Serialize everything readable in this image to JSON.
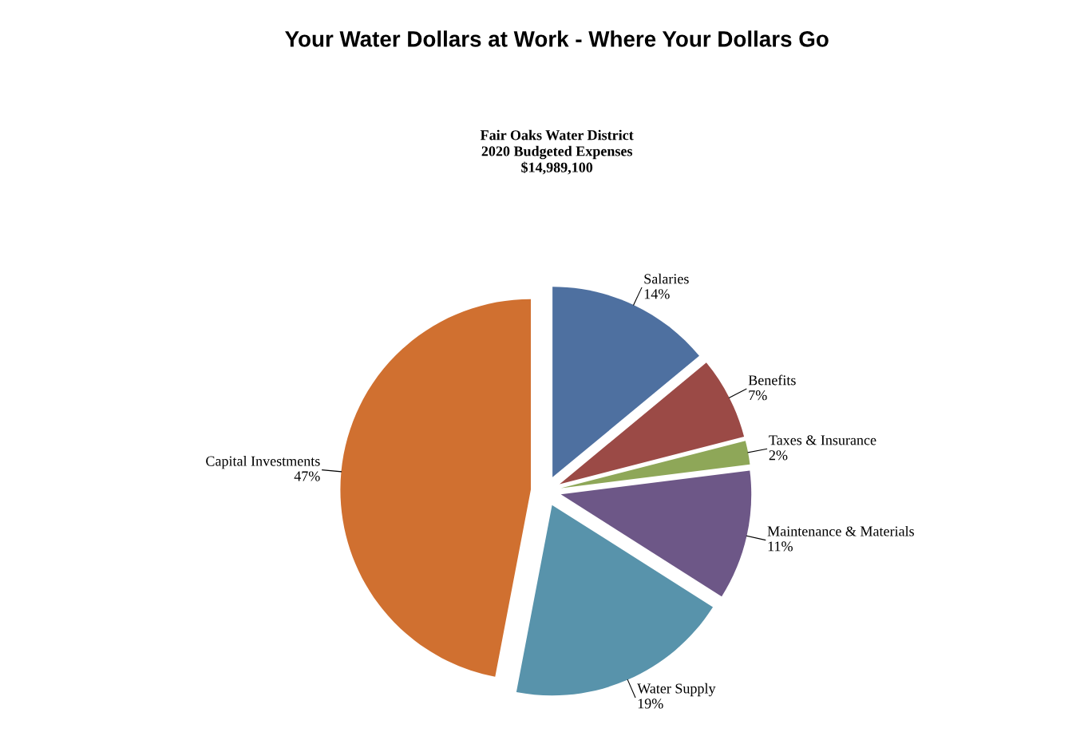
{
  "chart_data": {
    "type": "pie",
    "title": "Your Water Dollars at Work - Where Your Dollars Go",
    "subtitle": "Fair Oaks Water District\n2020 Budgeted Expenses\n$14,989,100",
    "categories": [
      "Salaries",
      "Benefits",
      "Taxes & Insurance",
      "Maintenance & Materials",
      "Water Supply",
      "Capital Investments"
    ],
    "values": [
      14,
      7,
      2,
      11,
      19,
      47
    ],
    "value_labels": [
      "14%",
      "7%",
      "2%",
      "11%",
      "19%",
      "47%"
    ],
    "colors": [
      "#4e70a0",
      "#9b4a46",
      "#8ea758",
      "#6d5787",
      "#5893ab",
      "#d07030"
    ],
    "legend": false
  }
}
